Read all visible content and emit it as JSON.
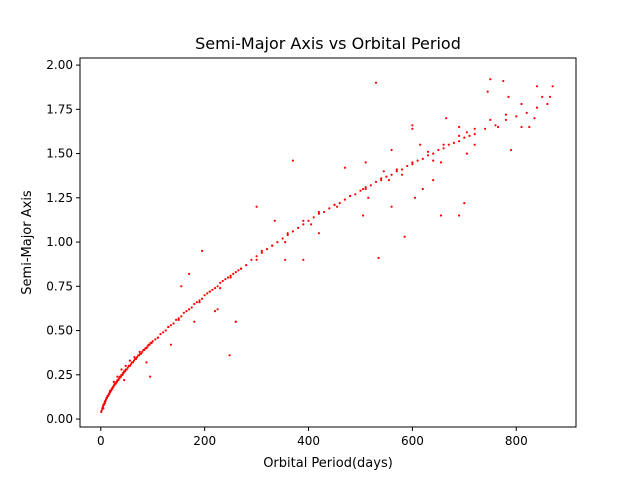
{
  "chart_data": {
    "type": "scatter",
    "title": "Semi-Major Axis vs Orbital Period",
    "xlabel": "Orbital Period(days)",
    "ylabel": "Semi-Major Axis",
    "xlim": [
      -40,
      915
    ],
    "ylim": [
      -0.045,
      2.04
    ],
    "xticks": [
      0,
      200,
      400,
      600,
      800
    ],
    "xtick_labels": [
      "0",
      "200",
      "400",
      "600",
      "800"
    ],
    "yticks": [
      0.0,
      0.25,
      0.5,
      0.75,
      1.0,
      1.25,
      1.5,
      1.75,
      2.0
    ],
    "ytick_labels": [
      "0.00",
      "0.25",
      "0.50",
      "0.75",
      "1.00",
      "1.25",
      "1.50",
      "1.75",
      "2.00"
    ],
    "grid": false,
    "marker_color": "#ff0000",
    "series": [
      {
        "x": [
          1,
          2,
          3,
          4,
          5,
          6,
          7,
          8,
          9,
          10,
          11,
          12,
          13,
          14,
          15,
          16,
          17,
          18,
          19,
          20,
          21,
          22,
          23,
          24,
          25,
          26,
          27,
          28,
          29,
          30,
          31,
          32,
          33,
          34,
          35,
          36,
          37,
          38,
          39,
          40,
          41,
          42,
          43,
          44,
          45,
          46,
          47,
          48,
          49,
          50,
          52,
          54,
          56,
          58,
          60,
          62,
          64,
          66,
          68,
          70,
          72,
          74,
          76,
          78,
          80,
          82,
          84,
          86,
          88,
          90,
          92,
          94,
          96,
          98,
          100,
          105,
          110,
          115,
          120,
          125,
          130,
          135,
          140,
          145,
          150,
          155,
          160,
          165,
          170,
          175,
          180,
          185,
          190,
          195,
          200,
          205,
          210,
          215,
          220,
          225,
          230,
          235,
          240,
          245,
          250,
          255,
          260,
          265,
          270,
          280,
          290,
          300,
          310,
          320,
          330,
          340,
          350,
          360,
          370,
          380,
          390,
          400,
          410,
          420,
          430,
          440,
          450,
          460,
          470,
          480,
          490,
          500,
          510,
          520,
          530,
          540,
          550,
          560,
          570,
          580,
          590,
          600,
          610,
          620,
          630,
          640,
          650,
          660,
          670,
          680,
          690,
          700,
          710,
          720,
          740,
          760,
          780,
          800,
          820,
          840,
          860,
          5,
          8,
          12,
          18,
          25,
          32,
          40,
          48,
          56,
          65,
          75,
          90,
          110,
          130,
          150,
          170,
          190,
          210,
          230,
          250,
          270,
          300,
          330,
          360,
          390,
          420,
          450,
          480,
          510,
          540,
          570,
          600,
          630,
          660,
          690,
          720,
          750,
          780,
          810,
          850,
          45,
          88,
          135,
          180,
          225,
          260,
          310,
          355,
          405,
          455,
          505,
          555,
          605,
          655,
          705,
          765,
          835
        ],
        "y": [
          0.04,
          0.05,
          0.06,
          0.07,
          0.08,
          0.08,
          0.09,
          0.1,
          0.1,
          0.11,
          0.12,
          0.12,
          0.13,
          0.13,
          0.14,
          0.14,
          0.15,
          0.15,
          0.16,
          0.16,
          0.17,
          0.17,
          0.18,
          0.18,
          0.19,
          0.19,
          0.2,
          0.2,
          0.2,
          0.21,
          0.21,
          0.22,
          0.22,
          0.22,
          0.23,
          0.23,
          0.24,
          0.24,
          0.24,
          0.25,
          0.25,
          0.25,
          0.26,
          0.26,
          0.27,
          0.27,
          0.27,
          0.28,
          0.28,
          0.28,
          0.29,
          0.3,
          0.3,
          0.31,
          0.32,
          0.32,
          0.33,
          0.34,
          0.34,
          0.35,
          0.36,
          0.36,
          0.37,
          0.37,
          0.38,
          0.39,
          0.39,
          0.4,
          0.4,
          0.41,
          0.42,
          0.42,
          0.43,
          0.43,
          0.44,
          0.45,
          0.46,
          0.48,
          0.49,
          0.5,
          0.52,
          0.53,
          0.54,
          0.56,
          0.57,
          0.58,
          0.6,
          0.61,
          0.62,
          0.63,
          0.65,
          0.66,
          0.67,
          0.68,
          0.7,
          0.71,
          0.72,
          0.73,
          0.74,
          0.75,
          0.77,
          0.78,
          0.79,
          0.8,
          0.81,
          0.82,
          0.83,
          0.84,
          0.85,
          0.87,
          0.9,
          0.92,
          0.94,
          0.96,
          0.98,
          1.0,
          1.02,
          1.04,
          1.06,
          1.08,
          1.1,
          1.12,
          1.14,
          1.16,
          1.17,
          1.19,
          1.21,
          1.22,
          1.24,
          1.26,
          1.27,
          1.29,
          1.3,
          1.32,
          1.34,
          1.35,
          1.37,
          1.38,
          1.4,
          1.41,
          1.43,
          1.44,
          1.46,
          1.47,
          1.49,
          1.5,
          1.52,
          1.53,
          1.55,
          1.56,
          1.57,
          1.59,
          1.6,
          1.61,
          1.64,
          1.66,
          1.69,
          1.71,
          1.73,
          1.76,
          1.78,
          0.06,
          0.09,
          0.12,
          0.16,
          0.21,
          0.24,
          0.28,
          0.3,
          0.33,
          0.35,
          0.38,
          0.41,
          0.46,
          0.52,
          0.56,
          0.62,
          0.66,
          0.72,
          0.74,
          0.8,
          0.85,
          0.9,
          0.98,
          1.05,
          1.12,
          1.17,
          1.21,
          1.26,
          1.31,
          1.36,
          1.41,
          1.45,
          1.51,
          1.55,
          1.6,
          1.64,
          1.69,
          1.72,
          1.78,
          1.82,
          0.22,
          0.32,
          0.42,
          0.55,
          0.62,
          0.55,
          0.95,
          0.9,
          1.1,
          1.2,
          1.3,
          1.35,
          1.25,
          1.45,
          1.5,
          1.65,
          1.7
        ]
      },
      {
        "x": [
          248,
          220,
          195,
          260,
          95,
          155,
          170,
          300,
          335,
          370,
          390,
          420,
          470,
          510,
          535,
          560,
          585,
          600,
          615,
          640,
          665,
          690,
          700,
          720,
          750,
          775,
          790,
          810,
          840,
          865,
          530,
          560,
          355,
          515,
          600,
          640,
          505,
          545,
          580,
          620,
          705,
          745,
          785,
          825,
          870,
          690,
          655
        ],
        "y": [
          0.36,
          0.61,
          0.95,
          0.55,
          0.24,
          0.75,
          0.82,
          1.2,
          1.12,
          1.46,
          0.9,
          1.05,
          1.42,
          1.45,
          0.91,
          1.52,
          1.03,
          1.64,
          1.55,
          1.46,
          1.7,
          1.15,
          1.22,
          1.55,
          1.92,
          1.91,
          1.52,
          1.65,
          1.88,
          1.82,
          1.9,
          1.2,
          1.0,
          1.25,
          1.66,
          1.35,
          1.15,
          1.4,
          1.38,
          1.3,
          1.62,
          1.85,
          1.82,
          1.65,
          1.88,
          1.65,
          1.15
        ]
      }
    ]
  }
}
